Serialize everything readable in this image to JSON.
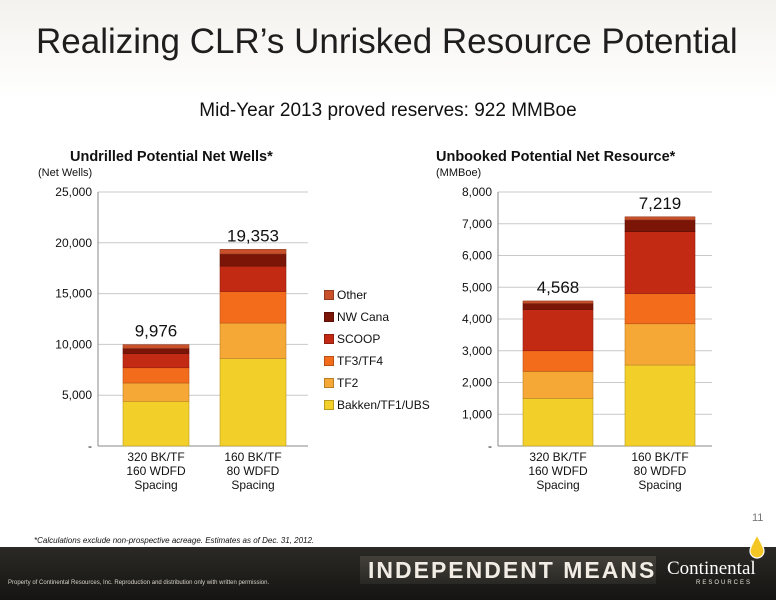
{
  "title": "Realizing CLR’s Unrisked Resource Potential",
  "subtitle": "Mid-Year 2013 proved reserves: 922 MMBoe",
  "page_number": "11",
  "footnote": "*Calculations exclude non-prospective acreage. Estimates as of Dec. 31, 2012.",
  "footer": {
    "tagline": "INDEPENDENT MEANS",
    "copyright": "Property of Continental Resources, Inc. Reproduction and distribution only with written permission.",
    "logo_text": "Continental",
    "logo_subtext": "RESOURCES"
  },
  "colors": {
    "Bakken/TF1/UBS": "#f3cf2a",
    "TF2": "#f6a836",
    "TF3/TF4": "#f36c1c",
    "SCOOP": "#c22a14",
    "NW Cana": "#7a1508",
    "Other": "#c8502a"
  },
  "legend": [
    "Other",
    "NW Cana",
    "SCOOP",
    "TF3/TF4",
    "TF2",
    "Bakken/TF1/UBS"
  ],
  "chart_data": [
    {
      "type": "bar",
      "stacked": true,
      "title": "Undrilled Potential Net Wells*",
      "ylabel": "(Net Wells)",
      "ylim": [
        0,
        25000
      ],
      "yticks": [
        "-",
        "5,000",
        "10,000",
        "15,000",
        "20,000",
        "25,000"
      ],
      "categories": [
        [
          "320 BK/TF",
          "160 WDFD",
          "Spacing"
        ],
        [
          "160 BK/TF",
          "80 WDFD",
          "Spacing"
        ]
      ],
      "totals": [
        "9,976",
        "19,353"
      ],
      "total_values": [
        9976,
        19353
      ],
      "grid": true,
      "legend_position": "right",
      "series": [
        {
          "name": "Bakken/TF1/UBS",
          "values": [
            4400,
            8600
          ]
        },
        {
          "name": "TF2",
          "values": [
            1800,
            3500
          ]
        },
        {
          "name": "TF3/TF4",
          "values": [
            1500,
            3100
          ]
        },
        {
          "name": "SCOOP",
          "values": [
            1400,
            2500
          ]
        },
        {
          "name": "NW Cana",
          "values": [
            500,
            1200
          ]
        },
        {
          "name": "Other",
          "values": [
            376,
            453
          ]
        }
      ]
    },
    {
      "type": "bar",
      "stacked": true,
      "title": "Unbooked Potential Net Resource*",
      "ylabel": "(MMBoe)",
      "ylim": [
        0,
        8000
      ],
      "yticks": [
        "-",
        "1,000",
        "2,000",
        "3,000",
        "4,000",
        "5,000",
        "6,000",
        "7,000",
        "8,000"
      ],
      "categories": [
        [
          "320 BK/TF",
          "160 WDFD",
          "Spacing"
        ],
        [
          "160 BK/TF",
          "80 WDFD",
          "Spacing"
        ]
      ],
      "totals": [
        "4,568",
        "7,219"
      ],
      "total_values": [
        4568,
        7219
      ],
      "grid": true,
      "series": [
        {
          "name": "Bakken/TF1/UBS",
          "values": [
            1500,
            2550
          ]
        },
        {
          "name": "TF2",
          "values": [
            850,
            1300
          ]
        },
        {
          "name": "TF3/TF4",
          "values": [
            650,
            950
          ]
        },
        {
          "name": "SCOOP",
          "values": [
            1300,
            1950
          ]
        },
        {
          "name": "NW Cana",
          "values": [
            190,
            370
          ]
        },
        {
          "name": "Other",
          "values": [
            78,
            99
          ]
        }
      ]
    }
  ]
}
